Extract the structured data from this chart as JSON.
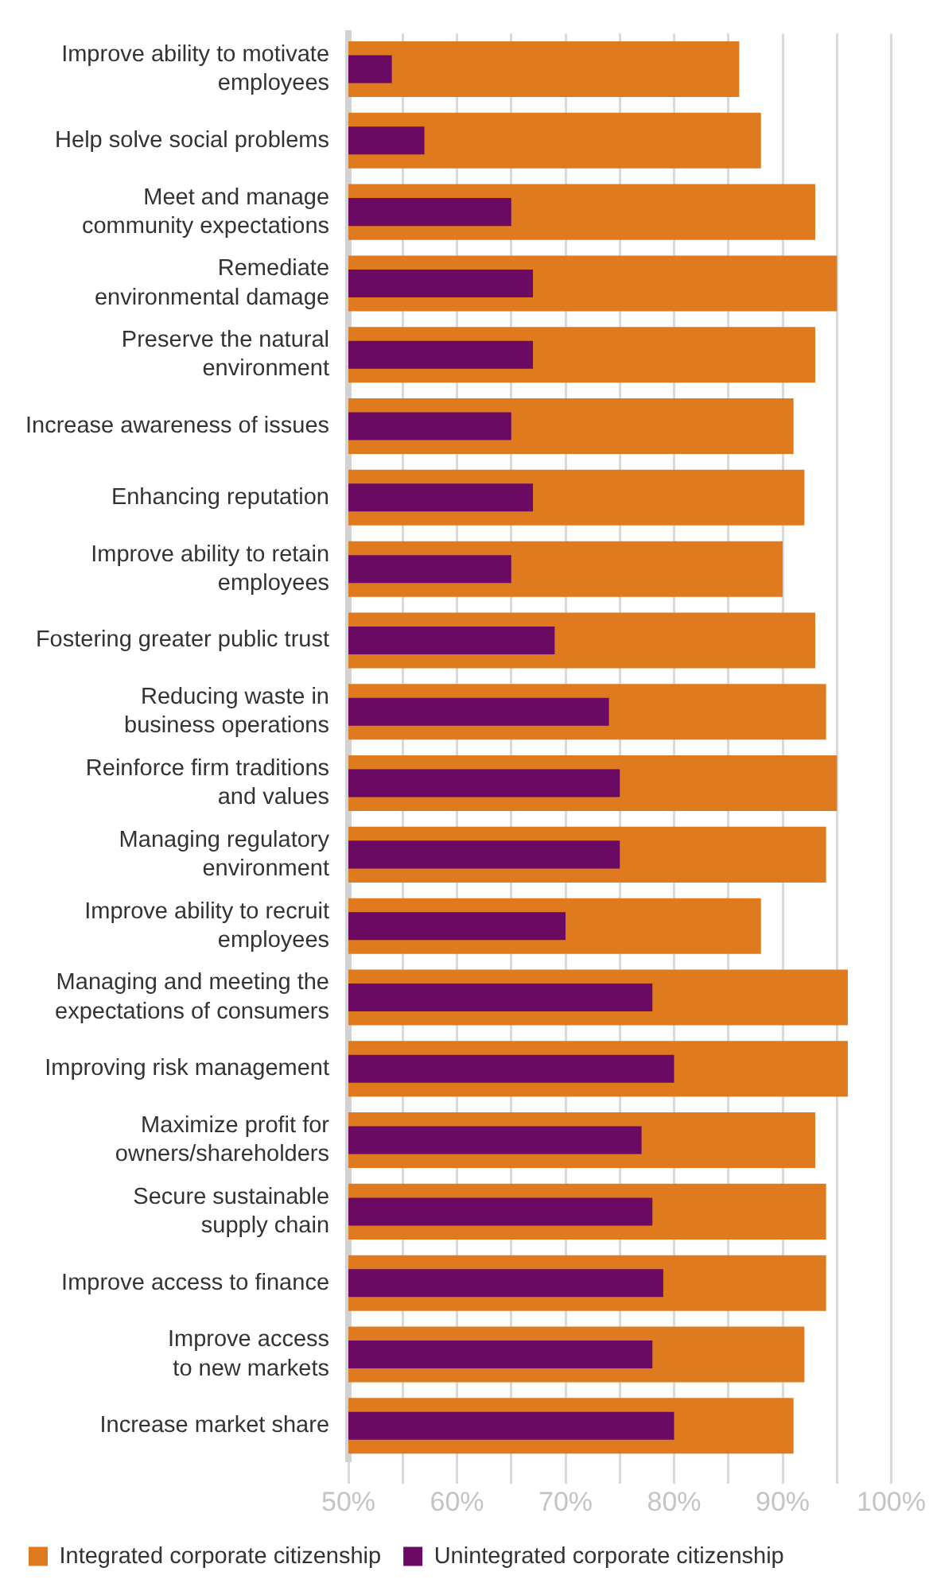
{
  "chart_data": {
    "type": "bar",
    "orientation": "horizontal",
    "categories": [
      "Improve ability to motivate\nemployees",
      "Help solve social problems",
      "Meet and manage\ncommunity expectations",
      "Remediate\nenvironmental damage",
      "Preserve the natural\nenvironment",
      "Increase awareness of issues",
      "Enhancing reputation",
      "Improve ability to retain\nemployees",
      "Fostering greater public trust",
      "Reducing waste in\nbusiness operations",
      "Reinforce firm traditions\nand values",
      "Managing regulatory\nenvironment",
      "Improve ability to recruit\nemployees",
      "Managing and meeting the\nexpectations of consumers",
      "Improving risk management",
      "Maximize profit for\nowners/shareholders",
      "Secure sustainable\nsupply chain",
      "Improve access to finance",
      "Improve access\nto new markets",
      "Increase market share"
    ],
    "series": [
      {
        "name": "Integrated corporate citizenship",
        "color": "#df7a1e",
        "values": [
          86,
          88,
          93,
          95,
          93,
          91,
          92,
          90,
          93,
          94,
          95,
          94,
          88,
          96,
          96,
          93,
          94,
          94,
          92,
          91
        ]
      },
      {
        "name": "Unintegrated corporate citizenship",
        "color": "#6a0a62",
        "values": [
          54,
          57,
          65,
          67,
          67,
          65,
          67,
          65,
          69,
          74,
          75,
          75,
          70,
          78,
          80,
          77,
          78,
          79,
          78,
          80
        ]
      }
    ],
    "xlim": [
      50,
      100
    ],
    "xticks": [
      {
        "value": 50,
        "label": "50%"
      },
      {
        "value": 55,
        "label": null
      },
      {
        "value": 60,
        "label": "60%"
      },
      {
        "value": 65,
        "label": null
      },
      {
        "value": 70,
        "label": "70%"
      },
      {
        "value": 75,
        "label": null
      },
      {
        "value": 80,
        "label": "80%"
      },
      {
        "value": 85,
        "label": null
      },
      {
        "value": 90,
        "label": "90%"
      },
      {
        "value": 95,
        "label": null
      },
      {
        "value": 100,
        "label": "100%"
      }
    ],
    "grid": "x",
    "legend": "bottom left"
  }
}
